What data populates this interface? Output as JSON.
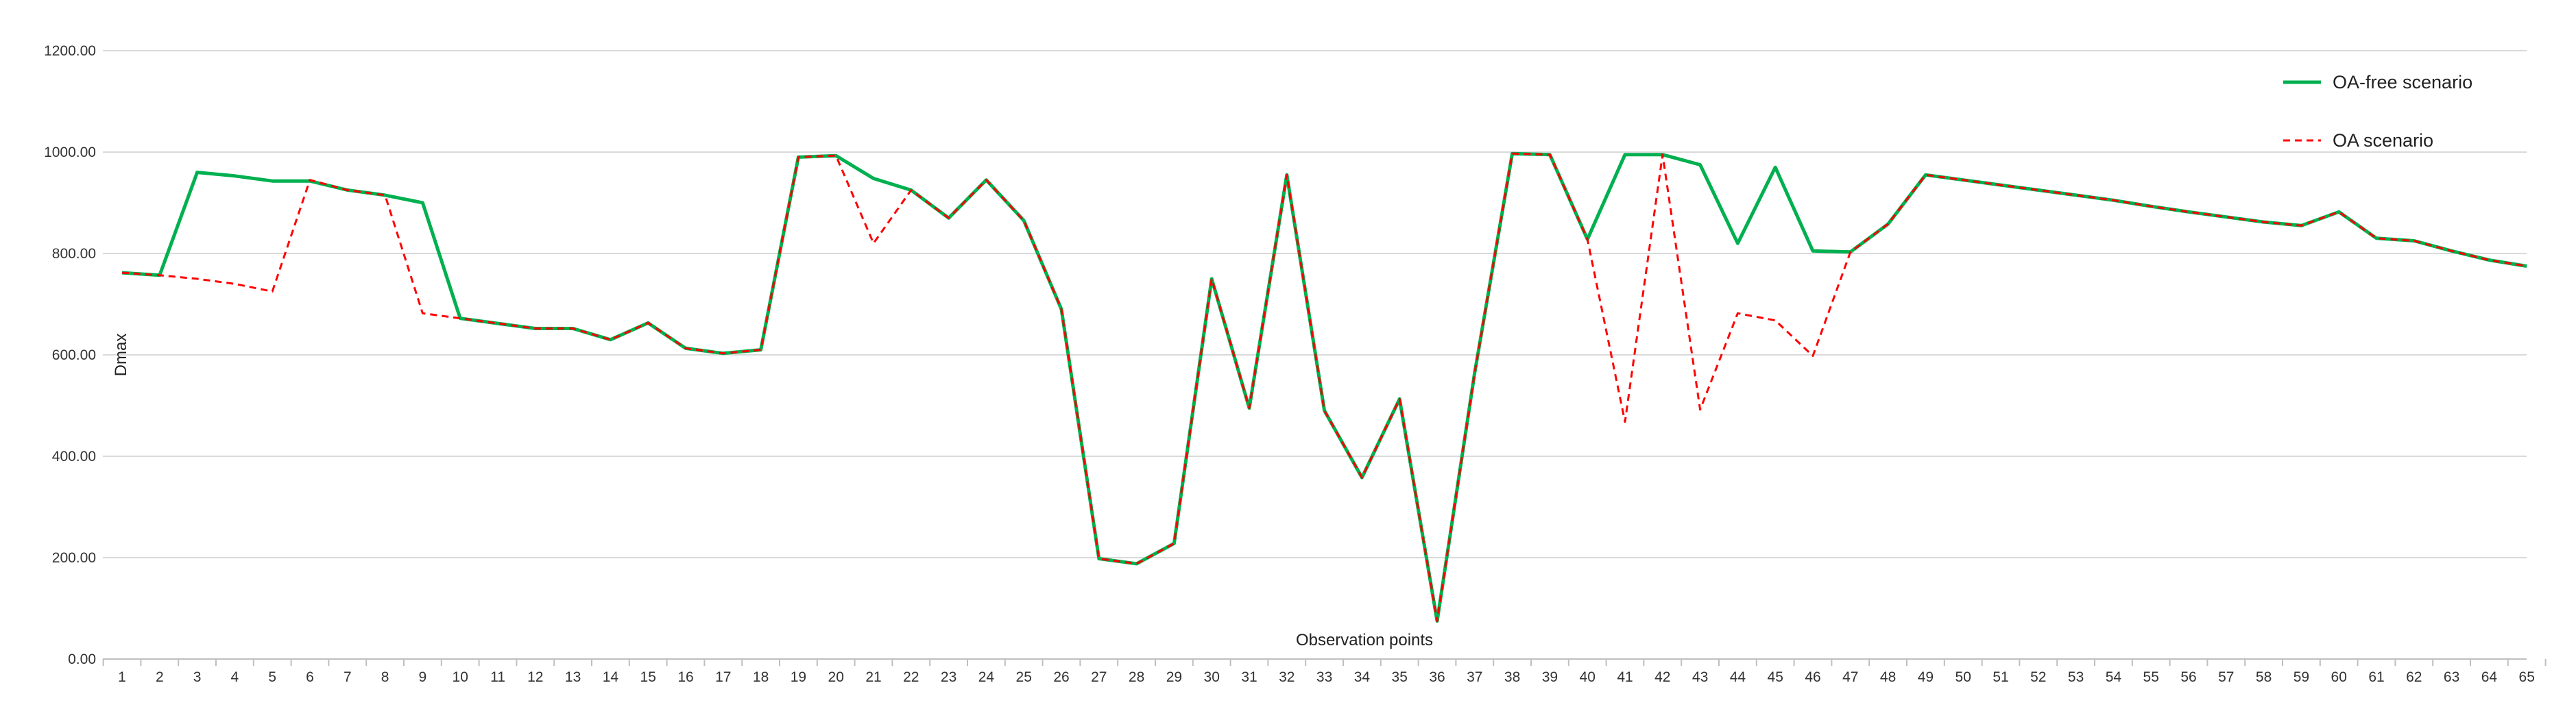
{
  "chart_data": {
    "type": "line",
    "xlabel": "Observation points",
    "ylabel": "Dmax",
    "ylim": [
      0,
      1200
    ],
    "yticks": [
      "0.00",
      "200.00",
      "400.00",
      "600.00",
      "800.00",
      "1000.00",
      "1200.00"
    ],
    "grid": true,
    "legend_position": "top-right",
    "x": [
      1,
      2,
      3,
      4,
      5,
      6,
      7,
      8,
      9,
      10,
      11,
      12,
      13,
      14,
      15,
      16,
      17,
      18,
      19,
      20,
      21,
      22,
      23,
      24,
      25,
      26,
      27,
      28,
      29,
      30,
      31,
      32,
      33,
      34,
      35,
      36,
      37,
      38,
      39,
      40,
      41,
      42,
      43,
      44,
      45,
      46,
      47,
      48,
      49,
      50,
      51,
      52,
      53,
      54,
      55,
      56,
      57,
      58,
      59,
      60,
      61,
      62,
      63,
      64,
      65
    ],
    "series": [
      {
        "name": "OA-free scenario",
        "color": "#00b050",
        "style": "solid",
        "values": [
          762,
          757,
          960,
          953,
          943,
          943,
          925,
          915,
          900,
          672,
          662,
          652,
          652,
          630,
          663,
          613,
          603,
          610,
          990,
          993,
          948,
          925,
          870,
          945,
          865,
          690,
          198,
          188,
          228,
          750,
          495,
          955,
          490,
          358,
          513,
          75,
          565,
          997,
          995,
          828,
          995,
          995,
          975,
          820,
          970,
          805,
          803,
          858,
          955,
          945,
          935,
          925,
          915,
          905,
          893,
          882,
          872,
          862,
          855,
          882,
          830,
          825,
          805,
          787,
          775
        ]
      },
      {
        "name": "OA scenario",
        "color": "#ff0000",
        "style": "dashed",
        "values": [
          762,
          757,
          750,
          740,
          725,
          945,
          925,
          915,
          682,
          672,
          662,
          652,
          652,
          630,
          663,
          613,
          603,
          610,
          990,
          993,
          820,
          925,
          870,
          945,
          865,
          690,
          198,
          188,
          228,
          750,
          495,
          955,
          490,
          358,
          513,
          75,
          565,
          997,
          995,
          828,
          468,
          995,
          492,
          682,
          668,
          598,
          803,
          858,
          955,
          945,
          935,
          925,
          915,
          905,
          893,
          882,
          872,
          862,
          855,
          882,
          830,
          825,
          805,
          787,
          775
        ]
      }
    ]
  }
}
